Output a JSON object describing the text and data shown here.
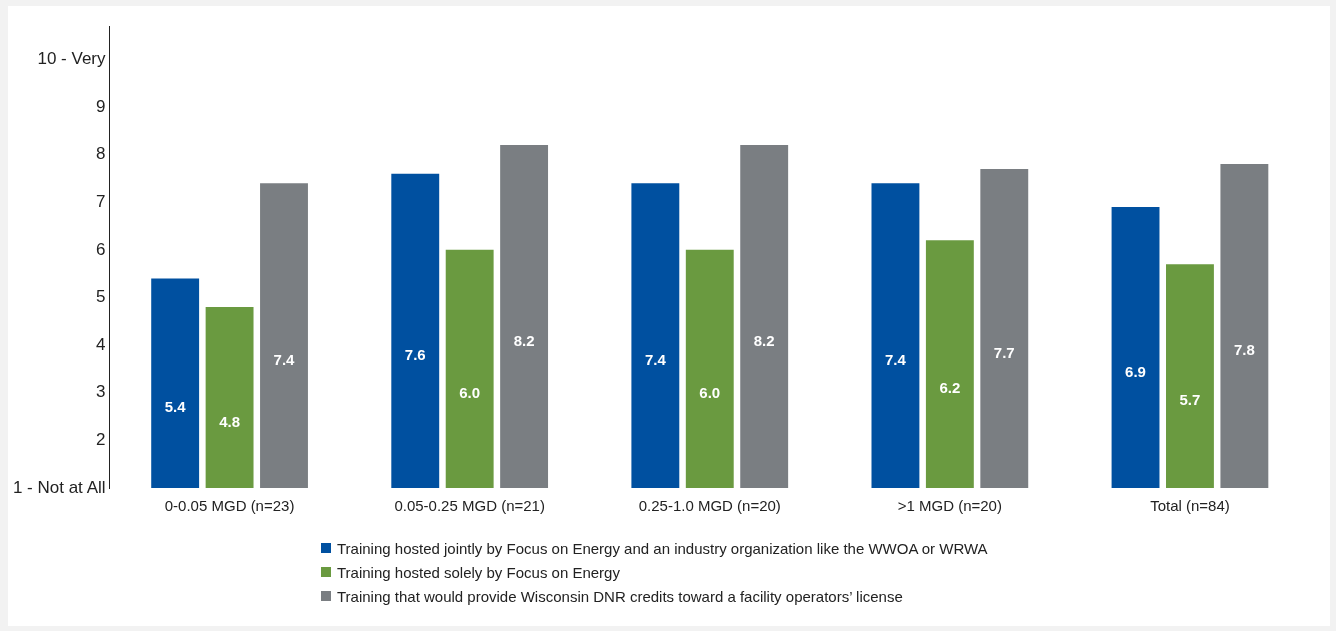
{
  "chart_data": {
    "type": "bar",
    "categories": [
      "0-0.05 MGD (n=23)",
      "0.05-0.25 MGD (n=21)",
      "0.25-1.0 MGD (n=20)",
      ">1 MGD (n=20)",
      "Total (n=84)"
    ],
    "series": [
      {
        "name": "Training hosted jointly by Focus on Energy and an industry organization like the WWOA or WRWA",
        "color": "#0050a0",
        "values": [
          5.4,
          7.6,
          7.4,
          7.4,
          6.9
        ],
        "value_labels": [
          "5.4",
          "7.6",
          "7.4",
          "7.4",
          "6.9"
        ]
      },
      {
        "name": "Training hosted solely by Focus on Energy",
        "color": "#6a9a40",
        "values": [
          4.8,
          6.0,
          6.0,
          6.2,
          5.7
        ],
        "value_labels": [
          "4.8",
          "6.0",
          "6.0",
          "6.2",
          "5.7"
        ]
      },
      {
        "name": "Training that would provide Wisconsin DNR credits toward a facility operators’ license",
        "color": "#7a7e82",
        "values": [
          7.4,
          8.2,
          8.2,
          7.7,
          7.8
        ],
        "value_labels": [
          "7.4",
          "8.2",
          "8.2",
          "7.7",
          "7.8"
        ]
      }
    ],
    "ylim": [
      1,
      10.7
    ],
    "yticks": [
      {
        "value": 1,
        "label": "1 - Not at All"
      },
      2,
      3,
      4,
      5,
      6,
      7,
      8,
      9,
      {
        "value": 10,
        "label": "10 - Very"
      }
    ],
    "grid": false,
    "legend": "bottom"
  }
}
